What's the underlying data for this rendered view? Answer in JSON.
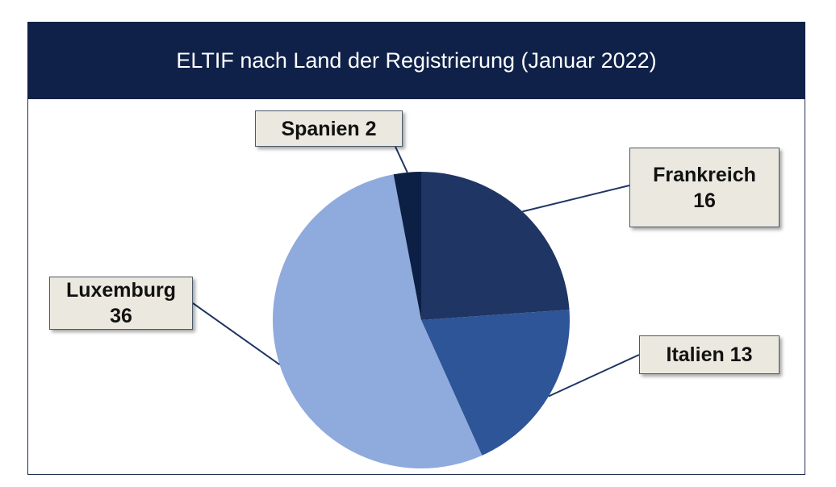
{
  "chart_data": {
    "type": "pie",
    "title": "ELTIF nach Land der Registrierung (Januar 2022)",
    "slices": [
      {
        "label": "Frankreich",
        "value": 16,
        "color": "#1f3563"
      },
      {
        "label": "Italien",
        "value": 13,
        "color": "#2e5597"
      },
      {
        "label": "Luxemburg",
        "value": 36,
        "color": "#8faadc"
      },
      {
        "label": "Spanien",
        "value": 2,
        "color": "#0c1f45"
      }
    ],
    "data_labels": {
      "frankreich": {
        "name": "Frankreich",
        "value": "16"
      },
      "italien": "Italien 13",
      "luxemburg": {
        "name": "Luxemburg",
        "value": "36"
      },
      "spanien": "Spanien 2"
    }
  }
}
